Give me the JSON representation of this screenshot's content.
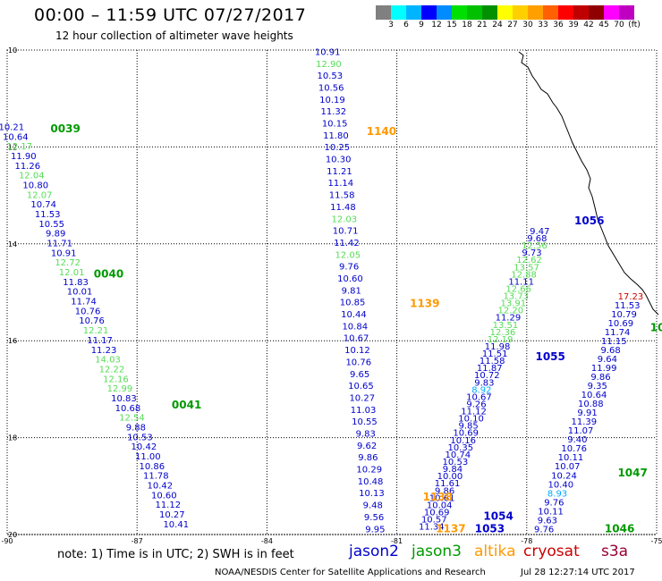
{
  "header": {
    "title": "00:00 – 11:59 UTC 07/27/2017",
    "subtitle": "12 hour collection of altimeter wave heights"
  },
  "legend": {
    "colors": [
      "#808080",
      "#00ffff",
      "#00b4ff",
      "#0000ff",
      "#008cff",
      "#00e000",
      "#00c000",
      "#009000",
      "#ffff00",
      "#ffd000",
      "#ffa000",
      "#ff6000",
      "#ff0000",
      "#c00000",
      "#900000",
      "#ff00ff",
      "#c000c0",
      "#ffffff"
    ],
    "labels": [
      "3",
      "6",
      "9",
      "12",
      "15",
      "18",
      "21",
      "24",
      "27",
      "30",
      "33",
      "36",
      "39",
      "42",
      "45",
      "70",
      "(ft)"
    ]
  },
  "axes": {
    "x_ticks": [
      "-90",
      "-87",
      "-84",
      "-81",
      "-78",
      "-75"
    ],
    "y_ticks": [
      "10",
      "12",
      "14",
      "16",
      "18",
      "20"
    ]
  },
  "colors": {
    "jason2": "#0000cc",
    "jason3": "#009900",
    "jason3_light": "#55dd55",
    "altika": "#ff9900",
    "cryosat": "#cc0000",
    "s3a": "#990033",
    "cyan": "#00aaff"
  },
  "tracks": [
    {
      "id": "0039",
      "color": "jason3",
      "lon0": -89.9,
      "lat0": 11.65,
      "lon1": -86.1,
      "lat1": 19.85,
      "values": [
        [
          "10.21",
          "jason2"
        ],
        [
          "10.64",
          "jason2"
        ],
        [
          "12.17",
          "jason3_light"
        ],
        [
          "11.90",
          "jason2"
        ],
        [
          "11.26",
          "jason2"
        ],
        [
          "12.04",
          "jason3_light"
        ],
        [
          "10.80",
          "jason2"
        ],
        [
          "12.07",
          "jason3_light"
        ],
        [
          "10.74",
          "jason2"
        ],
        [
          "11.53",
          "jason2"
        ],
        [
          "10.55",
          "jason2"
        ],
        [
          "9.89",
          "jason2"
        ],
        [
          "11.71",
          "jason2"
        ],
        [
          "10.91",
          "jason2"
        ],
        [
          "12.72",
          "jason3_light"
        ],
        [
          "12.01",
          "jason3_light"
        ],
        [
          "11.83",
          "jason2"
        ],
        [
          "10.01",
          "jason2"
        ],
        [
          "11.74",
          "jason2"
        ],
        [
          "10.76",
          "jason2"
        ],
        [
          "10.76",
          "jason2"
        ],
        [
          "12.21",
          "jason3_light"
        ],
        [
          "11.17",
          "jason2"
        ],
        [
          "11.23",
          "jason2"
        ],
        [
          "14.03",
          "jason3_light"
        ],
        [
          "12.22",
          "jason3_light"
        ],
        [
          "12.16",
          "jason3_light"
        ],
        [
          "12.99",
          "jason3_light"
        ],
        [
          "10.83",
          "jason2"
        ],
        [
          "10.68",
          "jason2"
        ],
        [
          "12.54",
          "jason3_light"
        ],
        [
          "9.88",
          "jason2"
        ],
        [
          "10.53",
          "jason2"
        ],
        [
          "10.42",
          "jason2"
        ],
        [
          "11.00",
          "jason2"
        ],
        [
          "10.86",
          "jason2"
        ],
        [
          "11.78",
          "jason2"
        ],
        [
          "10.42",
          "jason2"
        ],
        [
          "10.60",
          "jason2"
        ],
        [
          "11.12",
          "jason2"
        ],
        [
          "10.27",
          "jason2"
        ],
        [
          "10.41",
          "jason2"
        ]
      ]
    },
    {
      "id": "1140",
      "color": "altika",
      "lon0": -82.6,
      "lat0": 10.1,
      "lon1": -81.5,
      "lat1": 19.95,
      "values": [
        [
          "10.91",
          "jason2"
        ],
        [
          "12.90",
          "jason3_light"
        ],
        [
          "10.53",
          "jason2"
        ],
        [
          "10.56",
          "jason2"
        ],
        [
          "10.19",
          "jason2"
        ],
        [
          "11.32",
          "jason2"
        ],
        [
          "10.15",
          "jason2"
        ],
        [
          "11.80",
          "jason2"
        ],
        [
          "10.25",
          "jason2"
        ],
        [
          "10.30",
          "jason2"
        ],
        [
          "11.21",
          "jason2"
        ],
        [
          "11.14",
          "jason2"
        ],
        [
          "11.58",
          "jason2"
        ],
        [
          "11.48",
          "jason2"
        ],
        [
          "12.03",
          "jason3_light"
        ],
        [
          "10.71",
          "jason2"
        ],
        [
          "11.42",
          "jason2"
        ],
        [
          "12.05",
          "jason3_light"
        ],
        [
          "9.76",
          "jason2"
        ],
        [
          "10.60",
          "jason2"
        ],
        [
          "9.81",
          "jason2"
        ],
        [
          "10.85",
          "jason2"
        ],
        [
          "10.44",
          "jason2"
        ],
        [
          "10.84",
          "jason2"
        ],
        [
          "10.67",
          "jason2"
        ],
        [
          "10.12",
          "jason2"
        ],
        [
          "10.76",
          "jason2"
        ],
        [
          "9.65",
          "jason2"
        ],
        [
          "10.65",
          "jason2"
        ],
        [
          "10.27",
          "jason2"
        ],
        [
          "11.03",
          "jason2"
        ],
        [
          "10.55",
          "jason2"
        ],
        [
          "9.83",
          "jason2"
        ],
        [
          "9.62",
          "jason2"
        ],
        [
          "9.86",
          "jason2"
        ],
        [
          "10.29",
          "jason2"
        ],
        [
          "10.48",
          "jason2"
        ],
        [
          "10.13",
          "jason2"
        ],
        [
          "9.48",
          "jason2"
        ],
        [
          "9.56",
          "jason2"
        ],
        [
          "9.95",
          "jason2"
        ]
      ]
    },
    {
      "id": "1054",
      "color": "jason2",
      "lon0": -80.2,
      "lat0": 19.9,
      "lon1": -77.7,
      "lat1": 13.8,
      "values": [
        [
          "11.34",
          "jason2"
        ],
        [
          "10.57",
          "jason2"
        ],
        [
          "10.69",
          "jason2"
        ],
        [
          "10.04",
          "jason2"
        ],
        [
          "10.61",
          "jason2"
        ],
        [
          "9.86",
          "jason2"
        ],
        [
          "11.61",
          "jason2"
        ],
        [
          "10.00",
          "jason2"
        ],
        [
          "9.84",
          "jason2"
        ],
        [
          "10.53",
          "jason2"
        ],
        [
          "10.74",
          "jason2"
        ],
        [
          "10.35",
          "jason2"
        ],
        [
          "10.16",
          "jason2"
        ],
        [
          "10.69",
          "jason2"
        ],
        [
          "9.85",
          "jason2"
        ],
        [
          "10.10",
          "jason2"
        ],
        [
          "11.12",
          "jason2"
        ],
        [
          "9.26",
          "jason2"
        ],
        [
          "10.67",
          "jason2"
        ],
        [
          "8.92",
          "cyan"
        ],
        [
          "9.83",
          "jason2"
        ],
        [
          "10.72",
          "jason2"
        ],
        [
          "11.87",
          "jason2"
        ],
        [
          "11.58",
          "jason2"
        ],
        [
          "11.51",
          "jason2"
        ],
        [
          "11.98",
          "jason2"
        ],
        [
          "12.19",
          "jason3_light"
        ],
        [
          "12.36",
          "jason3_light"
        ],
        [
          "13.51",
          "jason3_light"
        ],
        [
          "11.29",
          "jason2"
        ],
        [
          "12.20",
          "jason3_light"
        ],
        [
          "13.91",
          "jason3_light"
        ],
        [
          "13.73",
          "jason3_light"
        ],
        [
          "12.66",
          "jason3_light"
        ],
        [
          "11.11",
          "jason2"
        ],
        [
          "12.88",
          "jason3_light"
        ],
        [
          "13.57",
          "jason3_light"
        ],
        [
          "12.62",
          "jason3_light"
        ],
        [
          "9.73",
          "jason2"
        ],
        [
          "12.56",
          "jason3_light"
        ],
        [
          "9.68",
          "jason2"
        ],
        [
          "9.47",
          "jason2"
        ]
      ]
    },
    {
      "id": "1046",
      "color": "jason3",
      "lon0": -77.6,
      "lat0": 19.95,
      "lon1": -75.6,
      "lat1": 15.15,
      "values": [
        [
          "9.76",
          "jason2"
        ],
        [
          "9.63",
          "jason2"
        ],
        [
          "10.11",
          "jason2"
        ],
        [
          "9.76",
          "jason2"
        ],
        [
          "8.93",
          "cyan"
        ],
        [
          "10.40",
          "jason2"
        ],
        [
          "10.24",
          "jason2"
        ],
        [
          "10.07",
          "jason2"
        ],
        [
          "10.11",
          "jason2"
        ],
        [
          "10.76",
          "jason2"
        ],
        [
          "9.40",
          "jason2"
        ],
        [
          "11.07",
          "jason2"
        ],
        [
          "11.39",
          "jason2"
        ],
        [
          "9.91",
          "jason2"
        ],
        [
          "10.88",
          "jason2"
        ],
        [
          "10.64",
          "jason2"
        ],
        [
          "9.35",
          "jason2"
        ],
        [
          "9.86",
          "jason2"
        ],
        [
          "11.99",
          "jason2"
        ],
        [
          "9.64",
          "jason2"
        ],
        [
          "9.68",
          "jason2"
        ],
        [
          "11.15",
          "jason2"
        ],
        [
          "11.74",
          "jason2"
        ],
        [
          "10.69",
          "jason2"
        ],
        [
          "10.79",
          "jason2"
        ],
        [
          "11.53",
          "jason2"
        ],
        [
          "17.23",
          "cryosat"
        ]
      ]
    }
  ],
  "track_ids": [
    {
      "text": "0039",
      "color": "jason3",
      "lon": -89.0,
      "lat": 11.7
    },
    {
      "text": "0040",
      "color": "jason3",
      "lon": -88.0,
      "lat": 14.7
    },
    {
      "text": "0041",
      "color": "jason3",
      "lon": -86.2,
      "lat": 17.4
    },
    {
      "text": "1140",
      "color": "altika",
      "lon": -81.7,
      "lat": 11.75
    },
    {
      "text": "1139",
      "color": "altika",
      "lon": -80.7,
      "lat": 15.3
    },
    {
      "text": "1138",
      "color": "altika",
      "lon": -80.4,
      "lat": 19.3
    },
    {
      "text": "1137",
      "color": "altika",
      "lon": -80.1,
      "lat": 19.95
    },
    {
      "text": "1056",
      "color": "jason2",
      "lon": -76.9,
      "lat": 13.6
    },
    {
      "text": "1055",
      "color": "jason2",
      "lon": -77.8,
      "lat": 16.4
    },
    {
      "text": "1054",
      "color": "jason2",
      "lon": -79.0,
      "lat": 19.7
    },
    {
      "text": "1053",
      "color": "jason2",
      "lon": -79.2,
      "lat": 19.95
    },
    {
      "text": "1047",
      "color": "jason3",
      "lon": -75.9,
      "lat": 18.8
    },
    {
      "text": "1046",
      "color": "jason3",
      "lon": -76.2,
      "lat": 19.95
    },
    {
      "text": "10",
      "color": "jason3",
      "lon": -75.15,
      "lat": 15.8
    }
  ],
  "note": "note:  1) Time is in UTC;  2) SWH is in feet",
  "satellites": [
    {
      "name": "jason2",
      "color": "jason2"
    },
    {
      "name": "jason3",
      "color": "jason3"
    },
    {
      "name": "altika",
      "color": "altika"
    },
    {
      "name": "cryosat",
      "color": "cryosat"
    },
    {
      "name": "s3a",
      "color": "s3a"
    }
  ],
  "footer": {
    "credit": "NOAA/NESDIS Center for Satellite Applications and Research",
    "timestamp": "Jul 28 12:27:14 UTC 2017"
  }
}
